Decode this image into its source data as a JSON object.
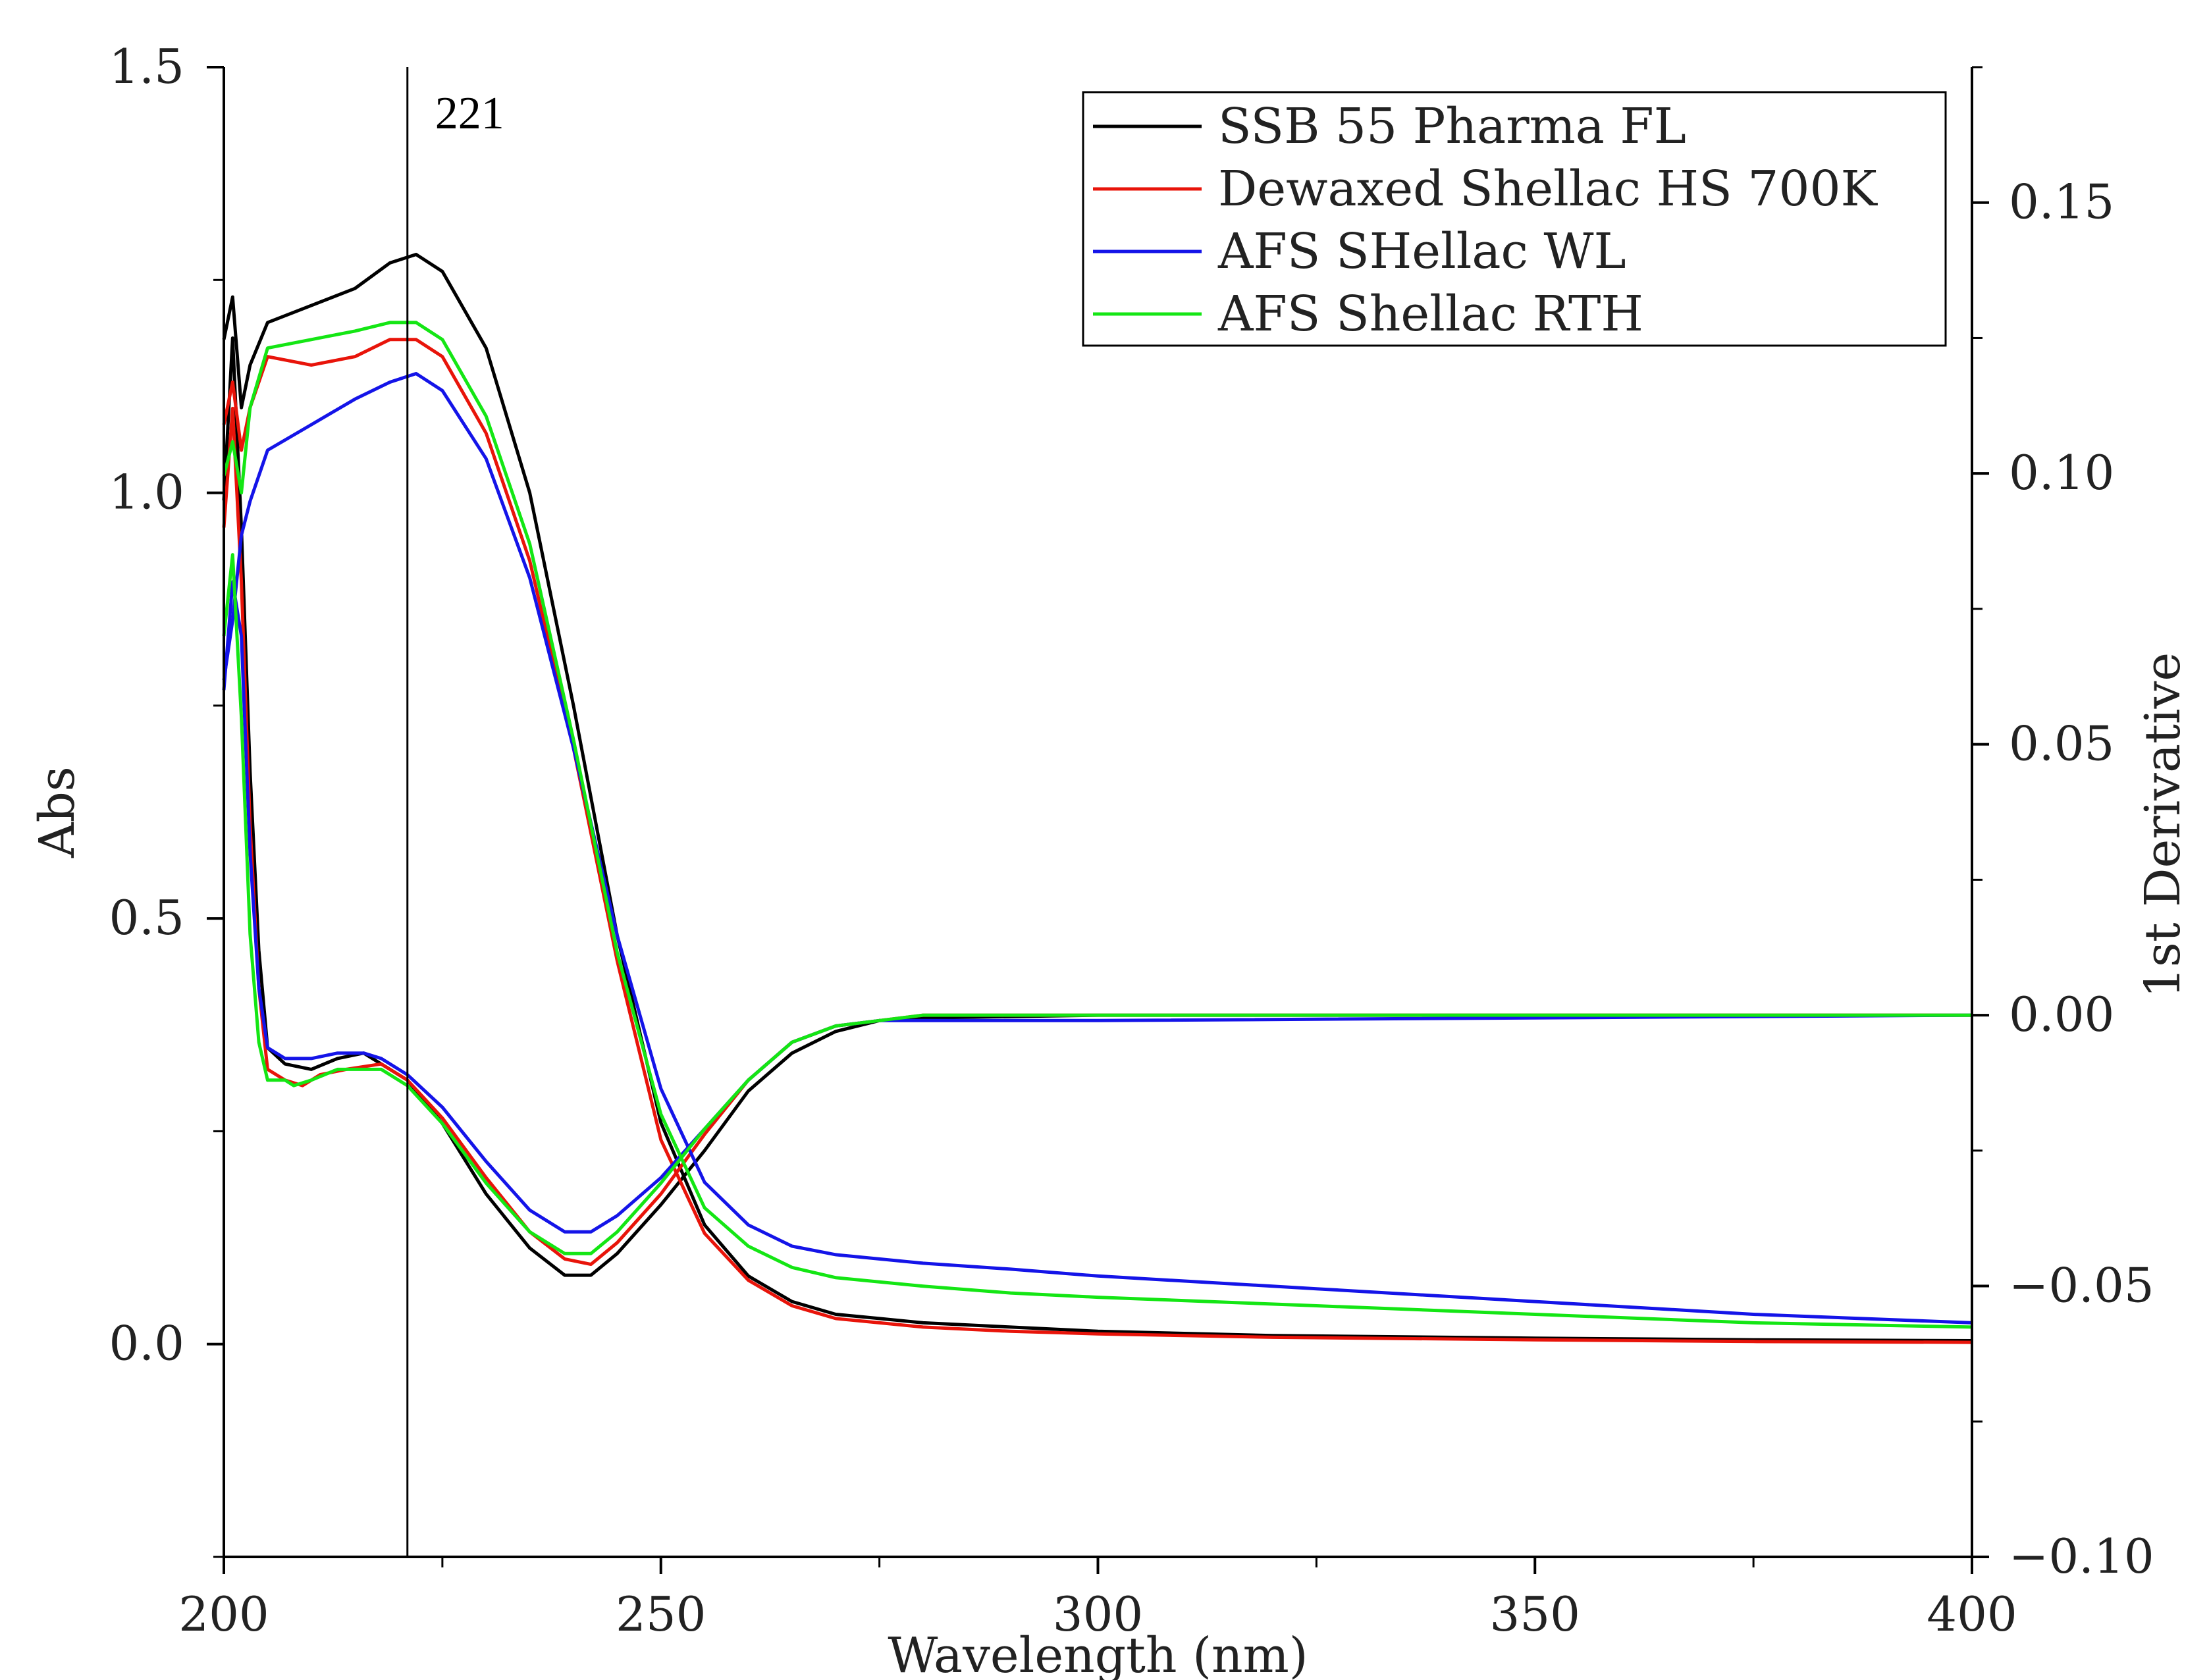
{
  "chart_data": {
    "type": "line",
    "xlabel": "Wavelength (nm)",
    "ylabel": "Abs",
    "y2label": "1st Derivative",
    "xlim": [
      200,
      400
    ],
    "ylim": [
      -0.25,
      1.5
    ],
    "y2lim": [
      -0.1,
      0.175
    ],
    "x_ticks": [
      "200",
      "250",
      "300",
      "350",
      "400"
    ],
    "y_ticks": [
      "0.0",
      "0.5",
      "1.0",
      "1.5"
    ],
    "y2_ticks": [
      "−0.10",
      "−0.05",
      "0.00",
      "0.05",
      "0.10",
      "0.15"
    ],
    "annotation": {
      "label": "221",
      "x": 221
    },
    "legend": {
      "position": "top-right"
    },
    "series": [
      {
        "name": "SSB 55 Pharma FL",
        "color": "#000000",
        "abs": [
          [
            200,
            1.18
          ],
          [
            201,
            1.23
          ],
          [
            202,
            1.1
          ],
          [
            203,
            1.15
          ],
          [
            205,
            1.2
          ],
          [
            210,
            1.22
          ],
          [
            215,
            1.24
          ],
          [
            219,
            1.27
          ],
          [
            222,
            1.28
          ],
          [
            225,
            1.26
          ],
          [
            230,
            1.17
          ],
          [
            235,
            1.0
          ],
          [
            240,
            0.75
          ],
          [
            245,
            0.48
          ],
          [
            250,
            0.26
          ],
          [
            255,
            0.14
          ],
          [
            260,
            0.08
          ],
          [
            265,
            0.05
          ],
          [
            270,
            0.035
          ],
          [
            275,
            0.03
          ],
          [
            280,
            0.025
          ],
          [
            290,
            0.02
          ],
          [
            300,
            0.015
          ],
          [
            320,
            0.01
          ],
          [
            350,
            0.007
          ],
          [
            375,
            0.005
          ],
          [
            400,
            0.004
          ]
        ],
        "deriv": [
          [
            200,
            0.095
          ],
          [
            201,
            0.125
          ],
          [
            202,
            0.09
          ],
          [
            203,
            0.045
          ],
          [
            204,
            0.012
          ],
          [
            205,
            -0.006
          ],
          [
            207,
            -0.009
          ],
          [
            210,
            -0.01
          ],
          [
            213,
            -0.008
          ],
          [
            216,
            -0.007
          ],
          [
            218,
            -0.009
          ],
          [
            221,
            -0.012
          ],
          [
            225,
            -0.02
          ],
          [
            230,
            -0.033
          ],
          [
            235,
            -0.043
          ],
          [
            239,
            -0.048
          ],
          [
            242,
            -0.048
          ],
          [
            245,
            -0.044
          ],
          [
            250,
            -0.035
          ],
          [
            255,
            -0.025
          ],
          [
            260,
            -0.014
          ],
          [
            265,
            -0.007
          ],
          [
            270,
            -0.003
          ],
          [
            275,
            -0.001
          ],
          [
            280,
            -0.0005
          ],
          [
            300,
            0.0
          ],
          [
            400,
            0.0
          ]
        ]
      },
      {
        "name": "Dewaxed Shellac HS 700K",
        "color": "#e8140a",
        "abs": [
          [
            200,
            1.08
          ],
          [
            201,
            1.13
          ],
          [
            202,
            1.05
          ],
          [
            203,
            1.1
          ],
          [
            205,
            1.16
          ],
          [
            210,
            1.15
          ],
          [
            215,
            1.16
          ],
          [
            219,
            1.18
          ],
          [
            222,
            1.18
          ],
          [
            225,
            1.16
          ],
          [
            230,
            1.07
          ],
          [
            235,
            0.92
          ],
          [
            240,
            0.7
          ],
          [
            245,
            0.45
          ],
          [
            250,
            0.24
          ],
          [
            255,
            0.13
          ],
          [
            260,
            0.075
          ],
          [
            265,
            0.045
          ],
          [
            270,
            0.03
          ],
          [
            275,
            0.025
          ],
          [
            280,
            0.02
          ],
          [
            290,
            0.015
          ],
          [
            300,
            0.012
          ],
          [
            320,
            0.008
          ],
          [
            350,
            0.005
          ],
          [
            375,
            0.003
          ],
          [
            400,
            0.002
          ]
        ],
        "deriv": [
          [
            200,
            0.09
          ],
          [
            201,
            0.112
          ],
          [
            202,
            0.08
          ],
          [
            203,
            0.035
          ],
          [
            204,
            0.005
          ],
          [
            205,
            -0.01
          ],
          [
            207,
            -0.012
          ],
          [
            209,
            -0.013
          ],
          [
            211,
            -0.011
          ],
          [
            214,
            -0.01
          ],
          [
            218,
            -0.009
          ],
          [
            221,
            -0.012
          ],
          [
            225,
            -0.019
          ],
          [
            230,
            -0.03
          ],
          [
            235,
            -0.04
          ],
          [
            239,
            -0.045
          ],
          [
            242,
            -0.046
          ],
          [
            245,
            -0.042
          ],
          [
            250,
            -0.033
          ],
          [
            255,
            -0.022
          ],
          [
            260,
            -0.012
          ],
          [
            265,
            -0.005
          ],
          [
            270,
            -0.002
          ],
          [
            275,
            -0.001
          ],
          [
            280,
            0.0
          ],
          [
            400,
            0.0
          ]
        ]
      },
      {
        "name": "AFS SHellac WL",
        "color": "#1414e8",
        "abs": [
          [
            200,
            0.78
          ],
          [
            201,
            0.85
          ],
          [
            202,
            0.95
          ],
          [
            203,
            0.99
          ],
          [
            205,
            1.05
          ],
          [
            210,
            1.08
          ],
          [
            215,
            1.11
          ],
          [
            219,
            1.13
          ],
          [
            222,
            1.14
          ],
          [
            225,
            1.12
          ],
          [
            230,
            1.04
          ],
          [
            235,
            0.9
          ],
          [
            240,
            0.7
          ],
          [
            245,
            0.48
          ],
          [
            250,
            0.3
          ],
          [
            255,
            0.19
          ],
          [
            260,
            0.14
          ],
          [
            265,
            0.115
          ],
          [
            270,
            0.105
          ],
          [
            280,
            0.095
          ],
          [
            290,
            0.088
          ],
          [
            300,
            0.08
          ],
          [
            325,
            0.065
          ],
          [
            350,
            0.05
          ],
          [
            375,
            0.035
          ],
          [
            400,
            0.025
          ]
        ],
        "deriv": [
          [
            200,
            0.06
          ],
          [
            201,
            0.08
          ],
          [
            202,
            0.07
          ],
          [
            203,
            0.03
          ],
          [
            204,
            0.005
          ],
          [
            205,
            -0.006
          ],
          [
            207,
            -0.008
          ],
          [
            210,
            -0.008
          ],
          [
            213,
            -0.007
          ],
          [
            216,
            -0.007
          ],
          [
            218,
            -0.008
          ],
          [
            221,
            -0.011
          ],
          [
            225,
            -0.017
          ],
          [
            230,
            -0.027
          ],
          [
            235,
            -0.036
          ],
          [
            239,
            -0.04
          ],
          [
            242,
            -0.04
          ],
          [
            245,
            -0.037
          ],
          [
            250,
            -0.03
          ],
          [
            255,
            -0.021
          ],
          [
            260,
            -0.012
          ],
          [
            265,
            -0.005
          ],
          [
            270,
            -0.002
          ],
          [
            275,
            -0.001
          ],
          [
            280,
            -0.001
          ],
          [
            300,
            -0.001
          ],
          [
            400,
            0.0
          ]
        ]
      },
      {
        "name": "AFS Shellac RTH",
        "color": "#14e614",
        "abs": [
          [
            200,
            1.02
          ],
          [
            201,
            1.06
          ],
          [
            202,
            1.0
          ],
          [
            203,
            1.1
          ],
          [
            205,
            1.17
          ],
          [
            210,
            1.18
          ],
          [
            215,
            1.19
          ],
          [
            219,
            1.2
          ],
          [
            222,
            1.2
          ],
          [
            225,
            1.18
          ],
          [
            230,
            1.09
          ],
          [
            235,
            0.94
          ],
          [
            240,
            0.71
          ],
          [
            245,
            0.46
          ],
          [
            250,
            0.27
          ],
          [
            255,
            0.16
          ],
          [
            260,
            0.115
          ],
          [
            265,
            0.09
          ],
          [
            270,
            0.078
          ],
          [
            280,
            0.068
          ],
          [
            290,
            0.06
          ],
          [
            300,
            0.055
          ],
          [
            325,
            0.045
          ],
          [
            350,
            0.035
          ],
          [
            375,
            0.025
          ],
          [
            400,
            0.02
          ]
        ],
        "deriv": [
          [
            200,
            0.07
          ],
          [
            201,
            0.085
          ],
          [
            202,
            0.055
          ],
          [
            203,
            0.015
          ],
          [
            204,
            -0.005
          ],
          [
            205,
            -0.012
          ],
          [
            207,
            -0.012
          ],
          [
            208,
            -0.013
          ],
          [
            210,
            -0.012
          ],
          [
            213,
            -0.01
          ],
          [
            216,
            -0.01
          ],
          [
            218,
            -0.01
          ],
          [
            221,
            -0.013
          ],
          [
            225,
            -0.02
          ],
          [
            230,
            -0.031
          ],
          [
            235,
            -0.04
          ],
          [
            239,
            -0.044
          ],
          [
            242,
            -0.044
          ],
          [
            245,
            -0.04
          ],
          [
            250,
            -0.031
          ],
          [
            255,
            -0.021
          ],
          [
            260,
            -0.012
          ],
          [
            265,
            -0.005
          ],
          [
            270,
            -0.002
          ],
          [
            275,
            -0.001
          ],
          [
            280,
            0.0
          ],
          [
            400,
            0.0
          ]
        ]
      }
    ]
  }
}
